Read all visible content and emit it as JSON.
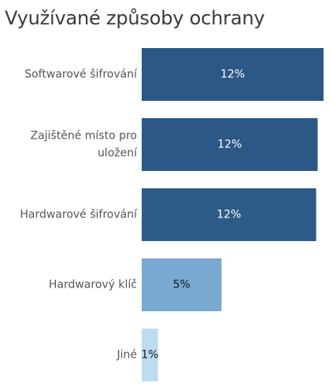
{
  "title": "Využívané způsoby ochrany",
  "chart_data": {
    "type": "bar",
    "orientation": "horizontal",
    "title": "Využívané způsoby ochrany",
    "categories": [
      "Softwarové šifrování",
      "Zajištěné místo pro uložení",
      "Hardwarové šifrování",
      "Hardwarový klíč",
      "Jiné"
    ],
    "category_lines": [
      [
        "Softwarové šifrování"
      ],
      [
        "Zajištěné místo pro",
        "uložení"
      ],
      [
        "Hardwarové šifrování"
      ],
      [
        "Hardwarový klíč"
      ],
      [
        "Jiné"
      ]
    ],
    "values": [
      12.3,
      11.9,
      11.8,
      5.4,
      1.1
    ],
    "value_labels": [
      "12%",
      "12%",
      "12%",
      "5%",
      "1%"
    ],
    "colors": [
      "#2b5886",
      "#2b5886",
      "#2d5b89",
      "#77a9d1",
      "#bcdcf0"
    ],
    "label_colors": [
      "#ffffff",
      "#ffffff",
      "#ffffff",
      "#1a1a1a",
      "#1a1a1a"
    ],
    "xlim": [
      0,
      12.3
    ],
    "grid": false,
    "legend": "none"
  }
}
